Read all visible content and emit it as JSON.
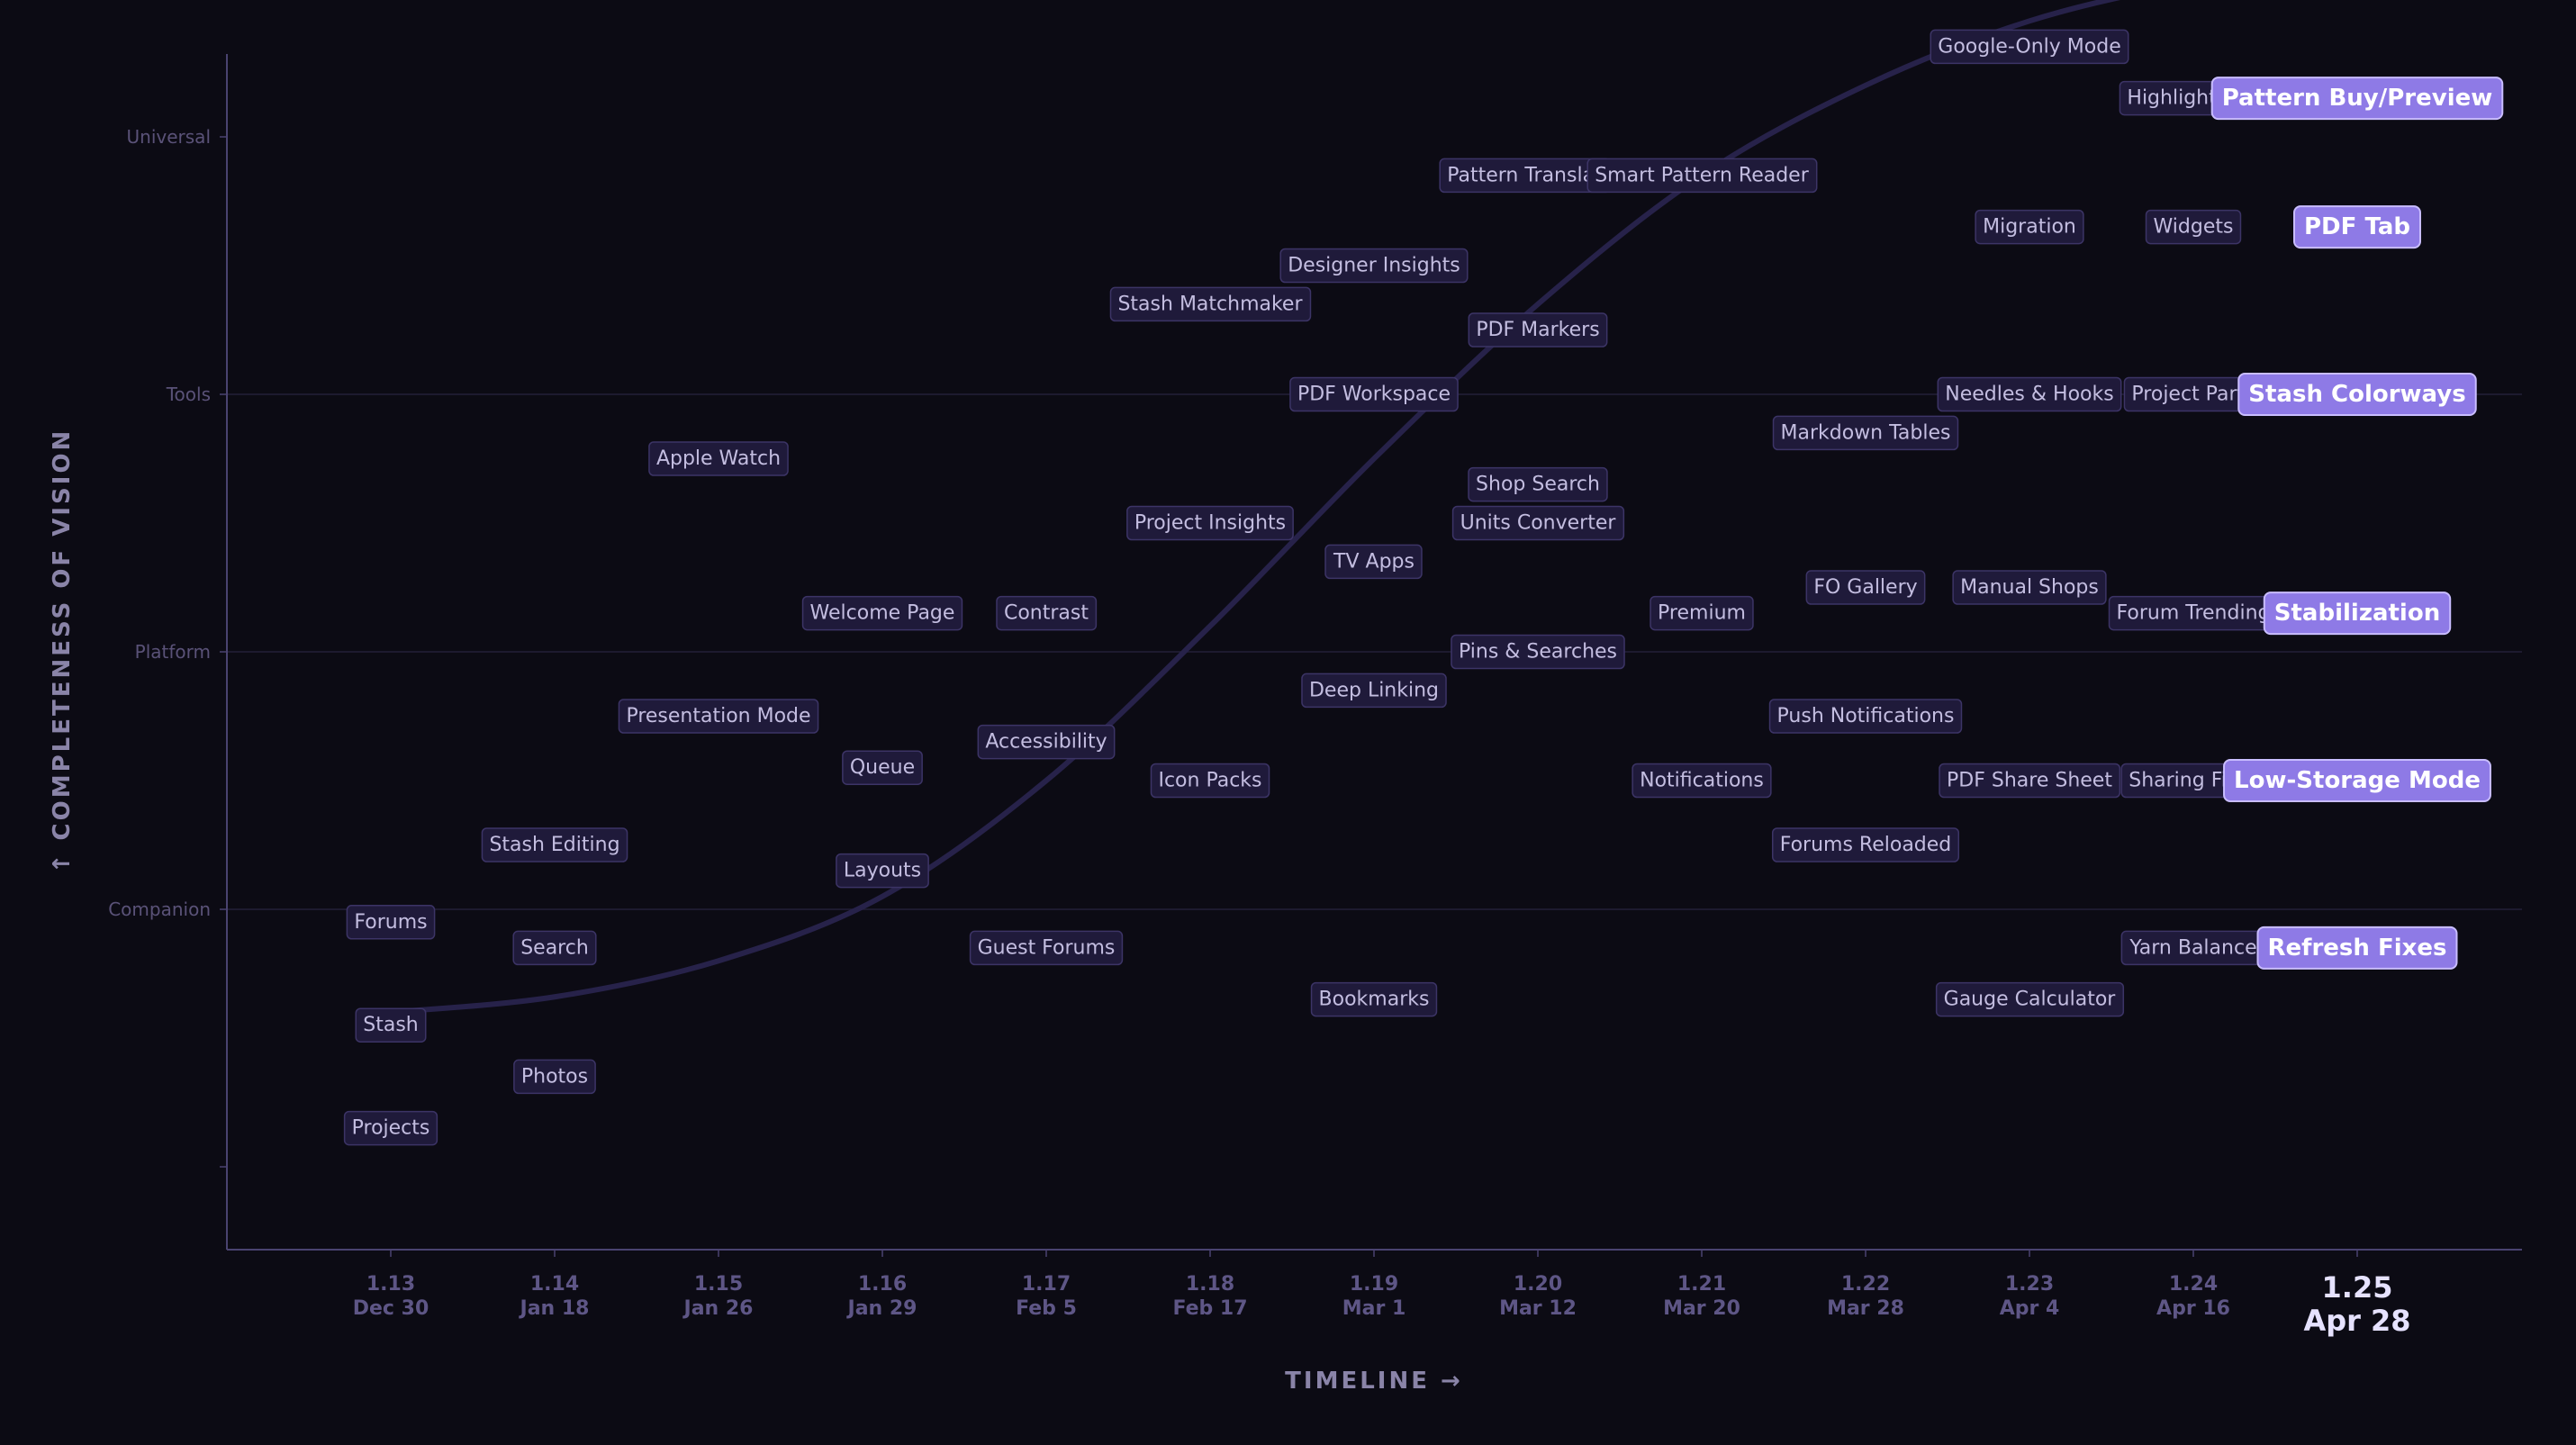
{
  "chart_data": {
    "type": "scatter",
    "title": "",
    "xlabel": "TIMELINE  →",
    "ylabel": "↑  COMPLETENESS  OF  VISION",
    "y_levels": [
      "Universal",
      "Tools",
      "Platform",
      "Companion"
    ],
    "x_versions": [
      {
        "version": "1.13",
        "date": "Dec 30"
      },
      {
        "version": "1.14",
        "date": "Jan 18"
      },
      {
        "version": "1.15",
        "date": "Jan 26"
      },
      {
        "version": "1.16",
        "date": "Jan 29"
      },
      {
        "version": "1.17",
        "date": "Feb 5"
      },
      {
        "version": "1.18",
        "date": "Feb 17"
      },
      {
        "version": "1.19",
        "date": "Mar 1"
      },
      {
        "version": "1.20",
        "date": "Mar 12"
      },
      {
        "version": "1.21",
        "date": "Mar 20"
      },
      {
        "version": "1.22",
        "date": "Mar 28"
      },
      {
        "version": "1.23",
        "date": "Apr 4"
      },
      {
        "version": "1.24",
        "date": "Apr 16"
      },
      {
        "version": "1.25",
        "date": "Apr 28"
      }
    ],
    "current_version_index": 12,
    "ylim": [
      -0.6,
      5.2
    ],
    "grid": true,
    "trend_curve": [
      [
        0,
        0.6
      ],
      [
        1,
        0.66
      ],
      [
        2,
        0.8
      ],
      [
        3,
        1.05
      ],
      [
        4,
        1.5
      ],
      [
        5,
        2.1
      ],
      [
        6,
        2.75
      ],
      [
        7,
        3.35
      ],
      [
        8,
        3.85
      ],
      [
        9,
        4.2
      ],
      [
        10,
        4.45
      ],
      [
        11,
        4.6
      ],
      [
        12,
        4.7
      ]
    ],
    "points": [
      {
        "label": "Forums",
        "x": 0,
        "y": 0.95,
        "highlight": false
      },
      {
        "label": "Stash",
        "x": 0,
        "y": 0.55,
        "highlight": false
      },
      {
        "label": "Projects",
        "x": 0,
        "y": 0.15,
        "highlight": false
      },
      {
        "label": "Search",
        "x": 1,
        "y": 0.85,
        "highlight": false
      },
      {
        "label": "Photos",
        "x": 1,
        "y": 0.35,
        "highlight": false
      },
      {
        "label": "Stash Editing",
        "x": 1,
        "y": 1.25,
        "highlight": false
      },
      {
        "label": "Apple Watch",
        "x": 2,
        "y": 2.75,
        "highlight": false
      },
      {
        "label": "Presentation Mode",
        "x": 2,
        "y": 1.75,
        "highlight": false
      },
      {
        "label": "Welcome Page",
        "x": 3,
        "y": 2.15,
        "highlight": false
      },
      {
        "label": "Queue",
        "x": 3,
        "y": 1.55,
        "highlight": false
      },
      {
        "label": "Layouts",
        "x": 3,
        "y": 1.15,
        "highlight": false
      },
      {
        "label": "Contrast",
        "x": 4,
        "y": 2.15,
        "highlight": false
      },
      {
        "label": "Accessibility",
        "x": 4,
        "y": 1.65,
        "highlight": false
      },
      {
        "label": "Guest Forums",
        "x": 4,
        "y": 0.85,
        "highlight": false
      },
      {
        "label": "Stash Matchmaker",
        "x": 5,
        "y": 3.35,
        "highlight": false
      },
      {
        "label": "Project Insights",
        "x": 5,
        "y": 2.5,
        "highlight": false
      },
      {
        "label": "Icon Packs",
        "x": 5,
        "y": 1.5,
        "highlight": false
      },
      {
        "label": "Designer Insights",
        "x": 6,
        "y": 3.5,
        "highlight": false
      },
      {
        "label": "PDF Workspace",
        "x": 6,
        "y": 3.0,
        "highlight": false
      },
      {
        "label": "TV Apps",
        "x": 6,
        "y": 2.35,
        "highlight": false
      },
      {
        "label": "Deep Linking",
        "x": 6,
        "y": 1.85,
        "highlight": false
      },
      {
        "label": "Bookmarks",
        "x": 6,
        "y": 0.65,
        "highlight": false
      },
      {
        "label": "Pattern Translat",
        "x": 6.92,
        "y": 3.85,
        "highlight": false
      },
      {
        "label": "PDF Markers",
        "x": 7,
        "y": 3.25,
        "highlight": false
      },
      {
        "label": "Shop Search",
        "x": 7,
        "y": 2.65,
        "highlight": false
      },
      {
        "label": "Units Converter",
        "x": 7,
        "y": 2.5,
        "highlight": false
      },
      {
        "label": "Pins & Searches",
        "x": 7,
        "y": 2.0,
        "highlight": false
      },
      {
        "label": "Smart Pattern Reader",
        "x": 8,
        "y": 3.85,
        "highlight": false
      },
      {
        "label": "Premium",
        "x": 8,
        "y": 2.15,
        "highlight": false
      },
      {
        "label": "Notifications",
        "x": 8,
        "y": 1.5,
        "highlight": false
      },
      {
        "label": "Markdown Tables",
        "x": 9,
        "y": 2.85,
        "highlight": false
      },
      {
        "label": "FO Gallery",
        "x": 9,
        "y": 2.25,
        "highlight": false
      },
      {
        "label": "Push Notifications",
        "x": 9,
        "y": 1.75,
        "highlight": false
      },
      {
        "label": "Forums Reloaded",
        "x": 9,
        "y": 1.25,
        "highlight": false
      },
      {
        "label": "Google-Only Mode",
        "x": 10,
        "y": 4.35,
        "highlight": false
      },
      {
        "label": "Migration",
        "x": 10,
        "y": 3.65,
        "highlight": false
      },
      {
        "label": "Needles & Hooks",
        "x": 10,
        "y": 3.0,
        "highlight": false
      },
      {
        "label": "Manual Shops",
        "x": 10,
        "y": 2.25,
        "highlight": false
      },
      {
        "label": "PDF Share Sheet",
        "x": 10,
        "y": 1.5,
        "highlight": false
      },
      {
        "label": "Gauge Calculator",
        "x": 10,
        "y": 0.65,
        "highlight": false
      },
      {
        "label": "Highlight C",
        "x": 10.93,
        "y": 4.15,
        "highlight": false
      },
      {
        "label": "Widgets",
        "x": 11,
        "y": 3.65,
        "highlight": false
      },
      {
        "label": "Project Parts",
        "x": 11,
        "y": 3.0,
        "highlight": false
      },
      {
        "label": "Forum Trending",
        "x": 11,
        "y": 2.15,
        "highlight": false
      },
      {
        "label": "Sharing Fix",
        "x": 10.94,
        "y": 1.5,
        "highlight": false
      },
      {
        "label": "Yarn Balance",
        "x": 11,
        "y": 0.85,
        "highlight": false
      },
      {
        "label": "Pattern Buy/Preview",
        "x": 12,
        "y": 4.15,
        "highlight": true
      },
      {
        "label": "PDF Tab",
        "x": 12,
        "y": 3.65,
        "highlight": true
      },
      {
        "label": "Stash Colorways",
        "x": 12,
        "y": 3.0,
        "highlight": true
      },
      {
        "label": "Stabilization",
        "x": 12,
        "y": 2.15,
        "highlight": true
      },
      {
        "label": "Low-Storage Mode",
        "x": 12,
        "y": 1.5,
        "highlight": true
      },
      {
        "label": "Refresh Fixes",
        "x": 12,
        "y": 0.85,
        "highlight": true
      }
    ]
  }
}
